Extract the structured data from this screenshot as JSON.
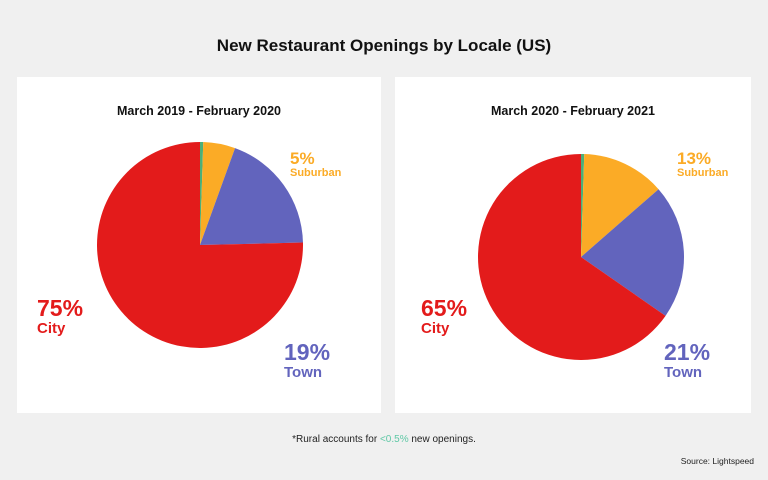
{
  "title": "New Restaurant Openings by Locale (US)",
  "colors": {
    "city": "#e31b1b",
    "town": "#6264bd",
    "suburban": "#fbab26",
    "rural": "#4caf78"
  },
  "charts": [
    {
      "period": "March 2019 - February 2020",
      "labels": {
        "suburban": {
          "pct": "5%",
          "name": "Suburban"
        },
        "town": {
          "pct": "19%",
          "name": "Town"
        },
        "city": {
          "pct": "75%",
          "name": "City"
        }
      }
    },
    {
      "period": "March 2020 - February 2021",
      "labels": {
        "suburban": {
          "pct": "13%",
          "name": "Suburban"
        },
        "town": {
          "pct": "21%",
          "name": "Town"
        },
        "city": {
          "pct": "65%",
          "name": "City"
        }
      }
    }
  ],
  "footnote": {
    "prefix": "*Rural accounts for ",
    "highlight": "<0.5%",
    "suffix": " new openings."
  },
  "source": "Source: Lightspeed",
  "chart_data": [
    {
      "type": "pie",
      "title": "March 2019 - February 2020",
      "categories": [
        "Rural",
        "Suburban",
        "Town",
        "City"
      ],
      "values": [
        0.5,
        5,
        19,
        75
      ],
      "unit": "%",
      "colors": [
        "#4caf78",
        "#fbab26",
        "#6264bd",
        "#e31b1b"
      ],
      "start_angle": "12 o'clock, clockwise",
      "legend": "inline labels"
    },
    {
      "type": "pie",
      "title": "March 2020 - February 2021",
      "categories": [
        "Rural",
        "Suburban",
        "Town",
        "City"
      ],
      "values": [
        0.5,
        13,
        21,
        65
      ],
      "unit": "%",
      "colors": [
        "#4caf78",
        "#fbab26",
        "#6264bd",
        "#e31b1b"
      ],
      "start_angle": "12 o'clock, clockwise",
      "legend": "inline labels"
    }
  ]
}
